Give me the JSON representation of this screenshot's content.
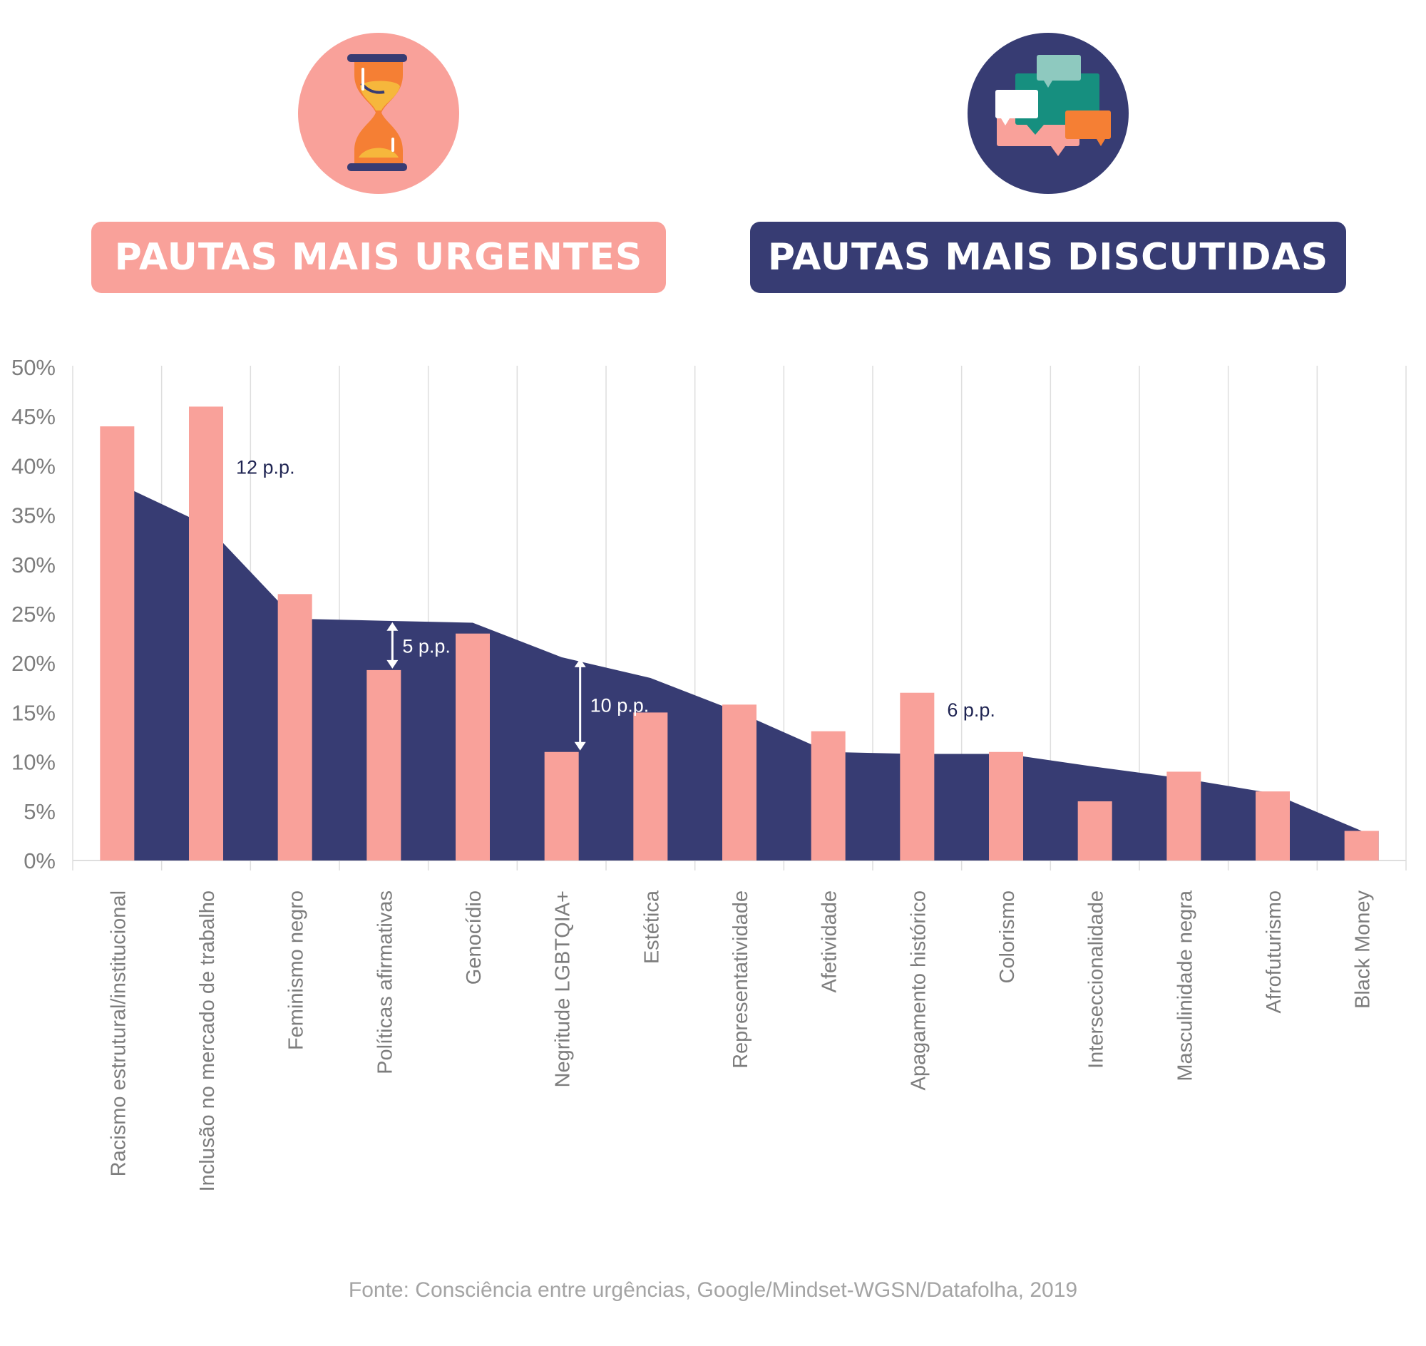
{
  "header": {
    "urgent_label": "PAUTAS MAIS URGENTES",
    "discussed_label": "PAUTAS MAIS DISCUTIDAS",
    "urgent_icon": "hourglass-icon",
    "discussed_icon": "speech-bubbles-icon"
  },
  "colors": {
    "urgent": "#f9a19a",
    "discussed": "#373c73",
    "grid": "#dedede",
    "axis_text": "#7d7d7d",
    "annotation_text": "#1f2452"
  },
  "chart_data": {
    "type": "bar",
    "categories": [
      "Racismo estrutural/institucional",
      "Inclusão no mercado de trabalho",
      "Feminismo negro",
      "Políticas afirmativas",
      "Genocídio",
      "Negritude LGBTQIA+",
      "Estética",
      "Representatividade",
      "Afetividade",
      "Apagamento histórico",
      "Colorismo",
      "Interseccionalidade",
      "Masculinidade negra",
      "Afrofuturismo",
      "Black Money"
    ],
    "series": [
      {
        "name": "PAUTAS MAIS URGENTES",
        "type": "bar",
        "values": [
          44,
          46,
          27,
          19.3,
          23,
          11,
          15,
          15.8,
          13.1,
          17,
          11,
          6,
          9,
          7,
          3
        ]
      },
      {
        "name": "PAUTAS MAIS DISCUTIDAS",
        "type": "area",
        "values": [
          39,
          34,
          24.5,
          24.3,
          24.1,
          20.6,
          18.5,
          15,
          11,
          10.8,
          10.8,
          9.5,
          8.3,
          6.8,
          3
        ]
      }
    ],
    "yticks": [
      "0%",
      "5%",
      "10%",
      "15%",
      "20%",
      "25%",
      "30%",
      "35%",
      "40%",
      "45%",
      "50%"
    ],
    "ylim": [
      0,
      50
    ],
    "grid": "vertical",
    "annotations": [
      {
        "category": "Inclusão no mercado de trabalho",
        "text": "12 p.p.",
        "arrow": false
      },
      {
        "category": "Políticas afirmativas",
        "text": "5 p.p.",
        "arrow": true
      },
      {
        "category": "Negritude LGBTQIA+",
        "text": "10 p.p.",
        "arrow": true
      },
      {
        "category": "Apagamento histórico",
        "text": "6 p.p.",
        "arrow": false
      }
    ]
  },
  "source": "Fonte: Consciência entre urgências, Google/Mindset-WGSN/Datafolha, 2019"
}
